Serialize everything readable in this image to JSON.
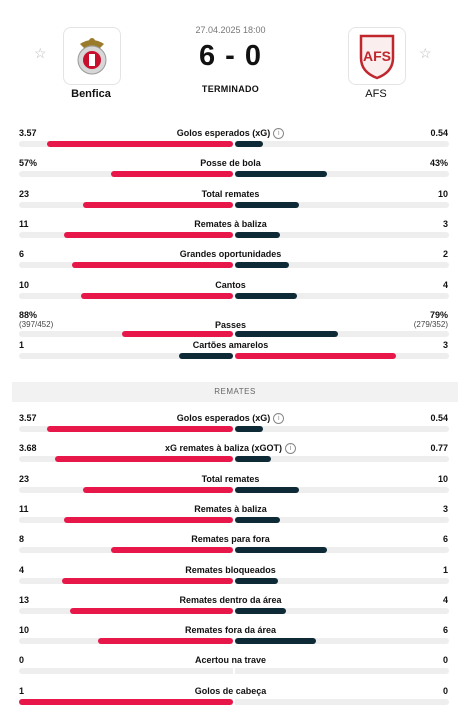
{
  "match": {
    "datetime": "27.04.2025 18:00",
    "score": "6 - 0",
    "status": "TERMINADO",
    "home": {
      "name": "Benfica",
      "logo_icon": "benfica-crest-icon"
    },
    "away": {
      "name": "AFS",
      "logo_icon": "afs-crest-icon"
    }
  },
  "colors": {
    "home": "#e8174a",
    "away": "#0e2a36",
    "track": "#eeeeee"
  },
  "stats_top": [
    {
      "label": "Golos esperados (xG)",
      "info": true,
      "left": "3.57",
      "right": "0.54",
      "lp": 0.87,
      "rp": 0.13,
      "lwin": true
    },
    {
      "label": "Posse de bola",
      "info": false,
      "left": "57%",
      "right": "43%",
      "lp": 0.57,
      "rp": 0.43,
      "lwin": true
    },
    {
      "label": "Total remates",
      "info": false,
      "left": "23",
      "right": "10",
      "lp": 0.7,
      "rp": 0.3,
      "lwin": true
    },
    {
      "label": "Remates à baliza",
      "info": false,
      "left": "11",
      "right": "3",
      "lp": 0.79,
      "rp": 0.21,
      "lwin": true
    },
    {
      "label": "Grandes oportunidades",
      "info": false,
      "left": "6",
      "right": "2",
      "lp": 0.75,
      "rp": 0.25,
      "lwin": true
    },
    {
      "label": "Cantos",
      "info": false,
      "left": "10",
      "right": "4",
      "lp": 0.71,
      "rp": 0.29,
      "lwin": true
    },
    {
      "label": "Passes",
      "info": false,
      "left": "88%",
      "right": "79%",
      "left_sub": "(397/452)",
      "right_sub": "(279/352)",
      "lp": 0.52,
      "rp": 0.48,
      "lwin": true
    },
    {
      "label": "Cartões amarelos",
      "info": false,
      "left": "1",
      "right": "3",
      "lp": 0.25,
      "rp": 0.75,
      "lwin": false
    }
  ],
  "section_remates": "REMATES",
  "stats_remates": [
    {
      "label": "Golos esperados (xG)",
      "info": true,
      "left": "3.57",
      "right": "0.54",
      "lp": 0.87,
      "rp": 0.13,
      "lwin": true
    },
    {
      "label": "xG remates à baliza (xGOT)",
      "info": true,
      "left": "3.68",
      "right": "0.77",
      "lp": 0.83,
      "rp": 0.17,
      "lwin": true
    },
    {
      "label": "Total remates",
      "info": false,
      "left": "23",
      "right": "10",
      "lp": 0.7,
      "rp": 0.3,
      "lwin": true
    },
    {
      "label": "Remates à baliza",
      "info": false,
      "left": "11",
      "right": "3",
      "lp": 0.79,
      "rp": 0.21,
      "lwin": true
    },
    {
      "label": "Remates para fora",
      "info": false,
      "left": "8",
      "right": "6",
      "lp": 0.57,
      "rp": 0.43,
      "lwin": true
    },
    {
      "label": "Remates bloqueados",
      "info": false,
      "left": "4",
      "right": "1",
      "lp": 0.8,
      "rp": 0.2,
      "lwin": true
    },
    {
      "label": "Remates dentro da área",
      "info": false,
      "left": "13",
      "right": "4",
      "lp": 0.76,
      "rp": 0.24,
      "lwin": true
    },
    {
      "label": "Remates fora da área",
      "info": false,
      "left": "10",
      "right": "6",
      "lp": 0.63,
      "rp": 0.38,
      "lwin": true
    },
    {
      "label": "Acertou na trave",
      "info": false,
      "left": "0",
      "right": "0",
      "lp": 0,
      "rp": 0,
      "lwin": true
    },
    {
      "label": "Golos de cabeça",
      "info": false,
      "left": "1",
      "right": "0",
      "lp": 1.0,
      "rp": 0,
      "lwin": true
    }
  ]
}
